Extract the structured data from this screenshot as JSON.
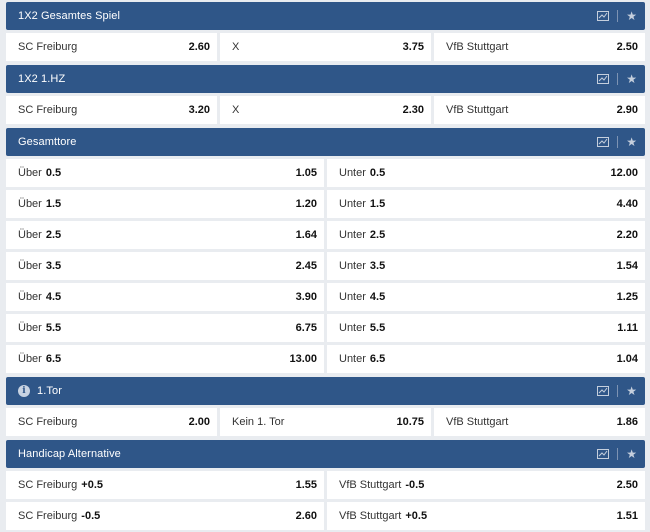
{
  "markets": [
    {
      "title": "1X2 Gesamtes Spiel",
      "rows": [
        [
          {
            "label": "SC Freiburg",
            "handicap": "",
            "odd": "2.60"
          },
          {
            "label": "X",
            "handicap": "",
            "odd": "3.75"
          },
          {
            "label": "VfB Stuttgart",
            "handicap": "",
            "odd": "2.50"
          }
        ]
      ]
    },
    {
      "title": "1X2 1.HZ",
      "rows": [
        [
          {
            "label": "SC Freiburg",
            "handicap": "",
            "odd": "3.20"
          },
          {
            "label": "X",
            "handicap": "",
            "odd": "2.30"
          },
          {
            "label": "VfB Stuttgart",
            "handicap": "",
            "odd": "2.90"
          }
        ]
      ]
    },
    {
      "title": "Gesamttore",
      "rows": [
        [
          {
            "label": "Über",
            "handicap": "0.5",
            "odd": "1.05"
          },
          {
            "label": "Unter",
            "handicap": "0.5",
            "odd": "12.00"
          }
        ],
        [
          {
            "label": "Über",
            "handicap": "1.5",
            "odd": "1.20"
          },
          {
            "label": "Unter",
            "handicap": "1.5",
            "odd": "4.40"
          }
        ],
        [
          {
            "label": "Über",
            "handicap": "2.5",
            "odd": "1.64"
          },
          {
            "label": "Unter",
            "handicap": "2.5",
            "odd": "2.20"
          }
        ],
        [
          {
            "label": "Über",
            "handicap": "3.5",
            "odd": "2.45"
          },
          {
            "label": "Unter",
            "handicap": "3.5",
            "odd": "1.54"
          }
        ],
        [
          {
            "label": "Über",
            "handicap": "4.5",
            "odd": "3.90"
          },
          {
            "label": "Unter",
            "handicap": "4.5",
            "odd": "1.25"
          }
        ],
        [
          {
            "label": "Über",
            "handicap": "5.5",
            "odd": "6.75"
          },
          {
            "label": "Unter",
            "handicap": "5.5",
            "odd": "1.11"
          }
        ],
        [
          {
            "label": "Über",
            "handicap": "6.5",
            "odd": "13.00"
          },
          {
            "label": "Unter",
            "handicap": "6.5",
            "odd": "1.04"
          }
        ]
      ]
    },
    {
      "title": "1.Tor",
      "info_icon": "i",
      "rows": [
        [
          {
            "label": "SC Freiburg",
            "handicap": "",
            "odd": "2.00"
          },
          {
            "label": "Kein 1. Tor",
            "handicap": "",
            "odd": "10.75"
          },
          {
            "label": "VfB Stuttgart",
            "handicap": "",
            "odd": "1.86"
          }
        ]
      ]
    },
    {
      "title": "Handicap Alternative",
      "rows": [
        [
          {
            "label": "SC Freiburg",
            "handicap": "+0.5",
            "odd": "1.55"
          },
          {
            "label": "VfB Stuttgart",
            "handicap": "-0.5",
            "odd": "2.50"
          }
        ],
        [
          {
            "label": "SC Freiburg",
            "handicap": "-0.5",
            "odd": "2.60"
          },
          {
            "label": "VfB Stuttgart",
            "handicap": "+0.5",
            "odd": "1.51"
          }
        ]
      ]
    }
  ],
  "icons": {
    "stats": "stats-icon",
    "favorite": "star-icon",
    "info": "info-icon"
  },
  "colors": {
    "header_bg": "#2f5688",
    "page_bg": "#e9ecf0",
    "cell_bg": "#ffffff"
  }
}
